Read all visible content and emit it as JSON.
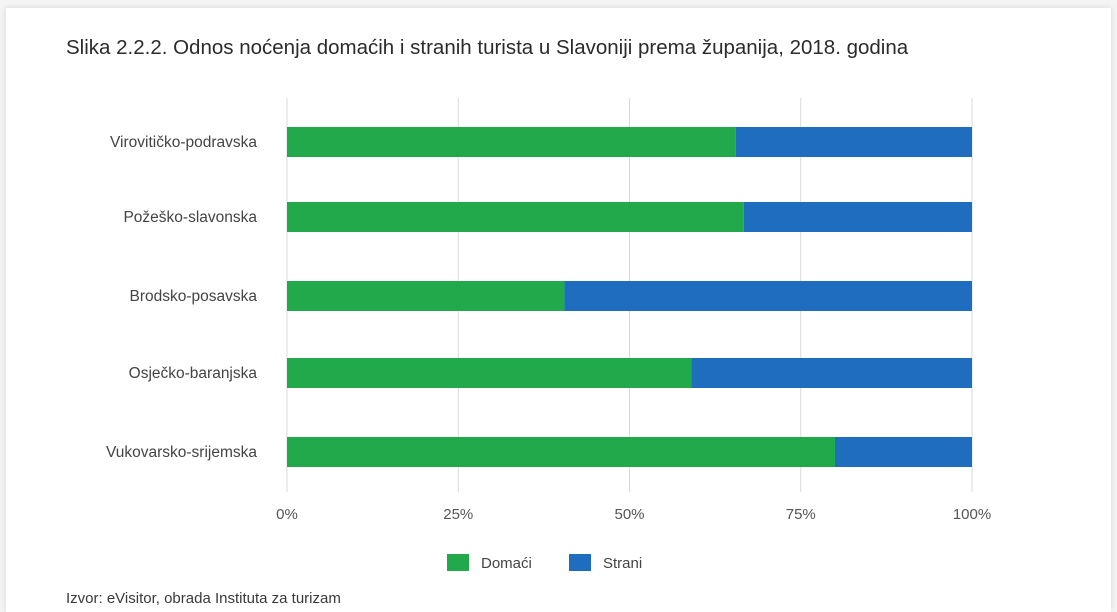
{
  "title": "Slika 2.2.2. Odnos noćenja domaćih i stranih turista u Slavoniji prema županija, 2018. godina",
  "source": "Izvor: eVisitor, obrada Instituta za turizam",
  "colors": {
    "domaci": "#22a94b",
    "strani": "#1f6dbf",
    "grid": "#d9d9d9",
    "background": "#ffffff"
  },
  "chart_data": {
    "type": "bar",
    "orientation": "horizontal",
    "stacked": true,
    "categories": [
      "Virovitičko-podravska",
      "Požeško-slavonska",
      "Brodsko-posavska",
      "Osječko-baranjska",
      "Vukovarsko-srijemska"
    ],
    "series": [
      {
        "name": "Domaći",
        "values": [
          65.5,
          66.7,
          40.5,
          59.0,
          80.0
        ]
      },
      {
        "name": "Strani",
        "values": [
          34.5,
          33.3,
          59.5,
          41.0,
          20.0
        ]
      }
    ],
    "xlim": [
      0,
      100
    ],
    "x_ticks": [
      "0%",
      "25%",
      "50%",
      "75%",
      "100%"
    ],
    "grid": true,
    "legend_position": "bottom-center"
  }
}
